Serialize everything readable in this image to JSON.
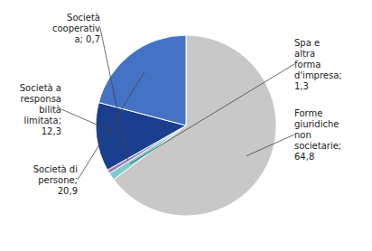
{
  "chart_data": {
    "type": "pie",
    "categories": [
      "Forme\ngiuridiche\nnon\nsocietarie;\n",
      "Spa e\naltra\nforma\nd'impresa;\n",
      "Società\ncooperativ\na; ",
      "Società a\nresponsa\nbilità\nlimitata;\n",
      "Società di\npersone;\n"
    ],
    "values": [
      64.8,
      1.3,
      0.7,
      12.3,
      20.9
    ],
    "value_labels": [
      "64,8",
      "1,3",
      "0,7",
      "12,3",
      "20,9"
    ],
    "colors": [
      "#c8c8c8",
      "#7ecbcb",
      "#9b7fb6",
      "#1a3f8f",
      "#4472c4"
    ],
    "data_labels": true
  }
}
